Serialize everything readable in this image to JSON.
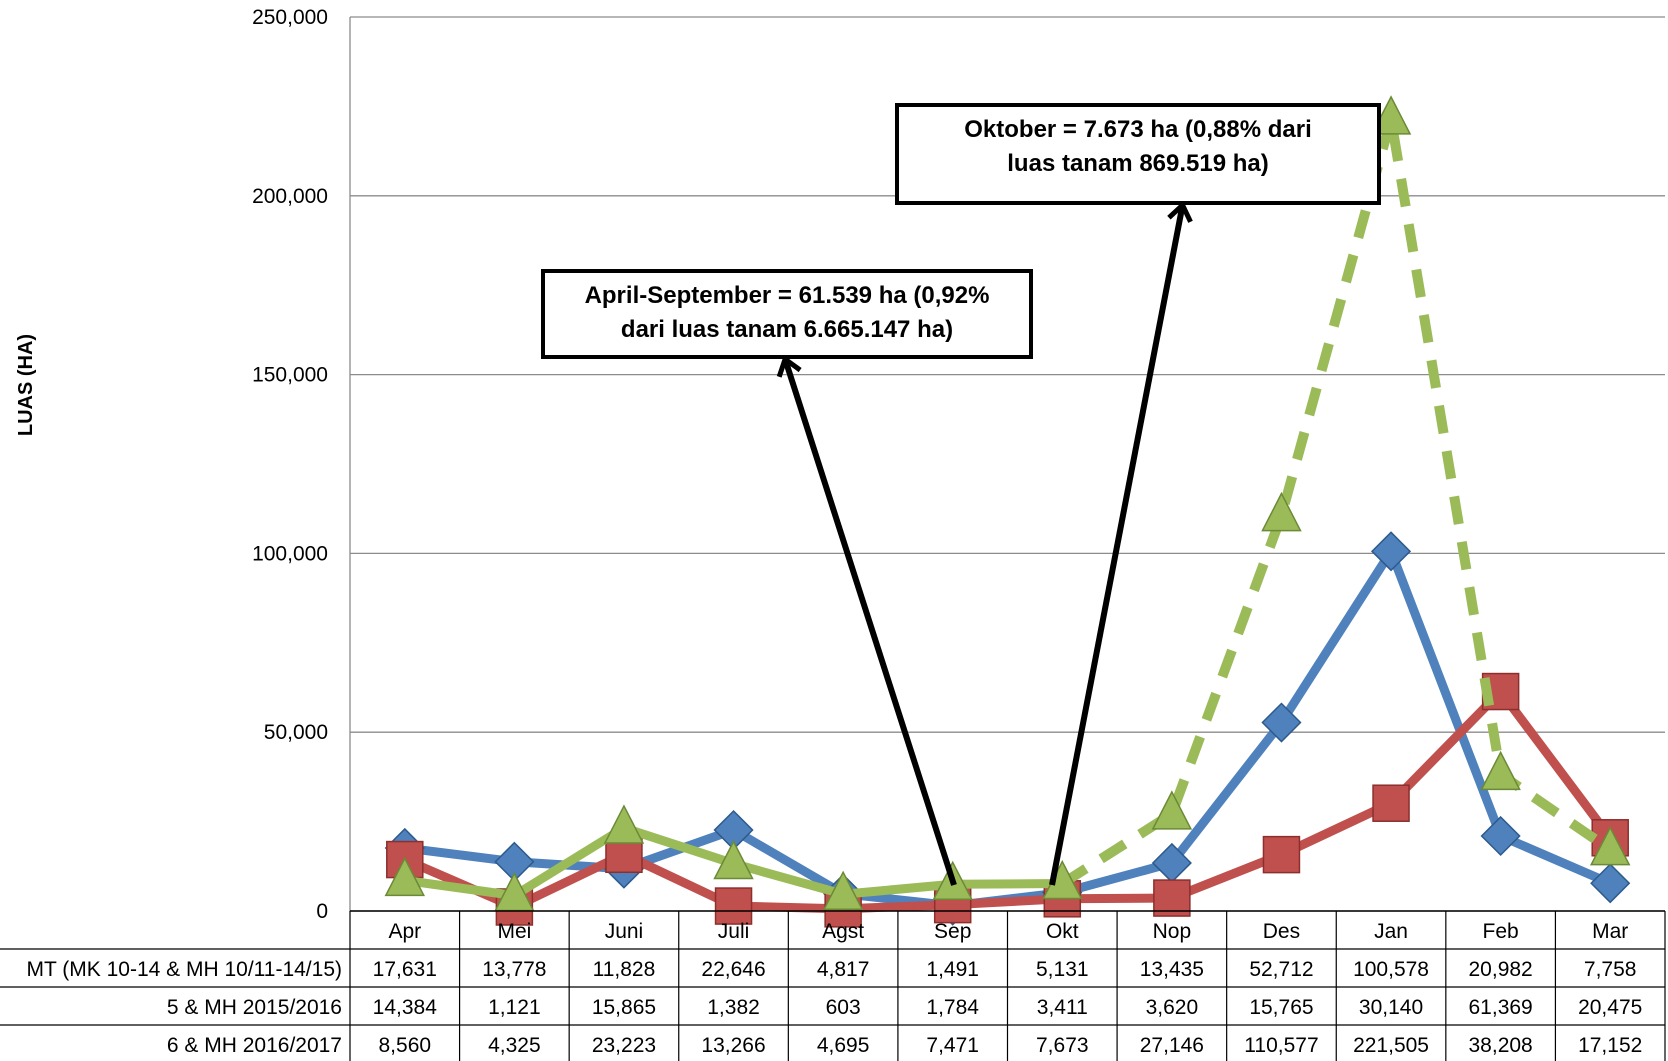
{
  "chart_data": {
    "type": "line",
    "ylabel": "LUAS (HA)",
    "ylim": [
      0,
      250000
    ],
    "yticks": [
      "0",
      "50,000",
      "100,000",
      "150,000",
      "200,000",
      "250,000"
    ],
    "ytick_values": [
      0,
      50000,
      100000,
      150000,
      200000,
      250000
    ],
    "grid": true,
    "categories": [
      "Apr",
      "Mei",
      "Juni",
      "Juli",
      "Agst",
      "Sep",
      "Okt",
      "Nop",
      "Des",
      "Jan",
      "Feb",
      "Mar"
    ],
    "series": [
      {
        "name": "MT (MK 10-14 & MH 10/11-14/15)",
        "display": [
          "17,631",
          "13,778",
          "11,828",
          "22,646",
          "4,817",
          "1,491",
          "5,131",
          "13,435",
          "52,712",
          "100,578",
          "20,982",
          "7,758"
        ],
        "values": [
          17631,
          13778,
          11828,
          22646,
          4817,
          1491,
          5131,
          13435,
          52712,
          100578,
          20982,
          7758
        ],
        "color": "#4f81bd",
        "marker": "diamond",
        "line": "solid"
      },
      {
        "name": "5 & MH 2015/2016",
        "display": [
          "14,384",
          "1,121",
          "15,865",
          "1,382",
          "603",
          "1,784",
          "3,411",
          "3,620",
          "15,765",
          "30,140",
          "61,369",
          "20,475"
        ],
        "values": [
          14384,
          1121,
          15865,
          1382,
          603,
          1784,
          3411,
          3620,
          15765,
          30140,
          61369,
          20475
        ],
        "color": "#c0504d",
        "marker": "square",
        "line": "solid"
      },
      {
        "name": "6 & MH 2016/2017",
        "display": [
          "8,560",
          "4,325",
          "23,223",
          "13,266",
          "4,695",
          "7,471",
          "7,673",
          "27,146",
          "110,577",
          "221,505",
          "38,208",
          "17,152"
        ],
        "values": [
          8560,
          4325,
          23223,
          13266,
          4695,
          7471,
          7673,
          27146,
          110577,
          221505,
          38208,
          17152
        ],
        "color": "#9bbb59",
        "marker": "triangle",
        "line": "solid-then-dashed",
        "dash_from_index": 6
      }
    ],
    "annotations": [
      {
        "text": "April-September = 61.539 ha (0,92%\ndari luas tanam 6.665.147 ha)"
      },
      {
        "text": "Oktober  = 7.673 ha (0,88%  dari\nluas tanam 869.519 ha)"
      }
    ]
  }
}
